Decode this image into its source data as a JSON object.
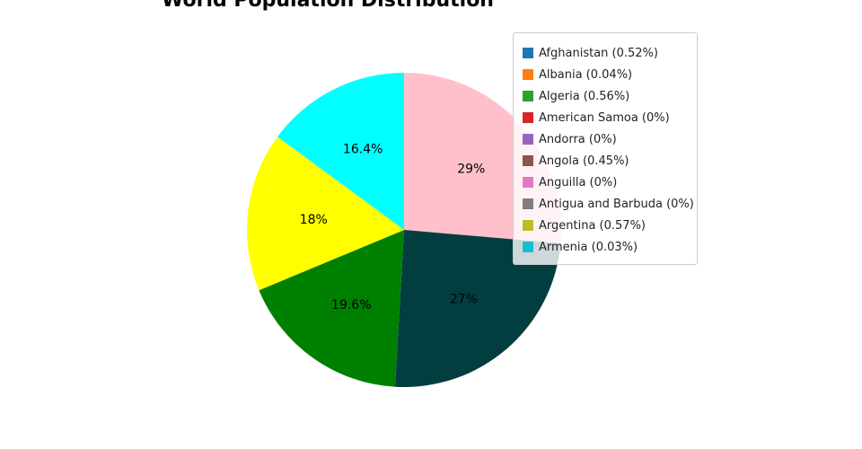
{
  "chart_data": {
    "type": "pie",
    "title": "World Population Distribution",
    "slices": [
      {
        "label": "29%",
        "value": 29,
        "color": "#ffc0cb"
      },
      {
        "label": "27%",
        "value": 27,
        "color": "#023e40"
      },
      {
        "label": "19.6%",
        "value": 19.6,
        "color": "#008000"
      },
      {
        "label": "18%",
        "value": 18,
        "color": "#ffff00"
      },
      {
        "label": "16.4%",
        "value": 16.4,
        "color": "#00ffff"
      }
    ],
    "legend_position": "top-right",
    "legend": [
      {
        "label": "Afghanistan (0.52%)",
        "color": "#1f77b4"
      },
      {
        "label": "Albania (0.04%)",
        "color": "#ff7f0e"
      },
      {
        "label": "Algeria (0.56%)",
        "color": "#2ca02c"
      },
      {
        "label": "American Samoa (0%)",
        "color": "#d62728"
      },
      {
        "label": "Andorra (0%)",
        "color": "#9467bd"
      },
      {
        "label": "Angola (0.45%)",
        "color": "#8c564b"
      },
      {
        "label": "Anguilla (0%)",
        "color": "#e377c2"
      },
      {
        "label": "Antigua and Barbuda (0%)",
        "color": "#7f7f7f"
      },
      {
        "label": "Argentina (0.57%)",
        "color": "#bcbd22"
      },
      {
        "label": "Armenia (0.03%)",
        "color": "#17becf"
      }
    ]
  }
}
